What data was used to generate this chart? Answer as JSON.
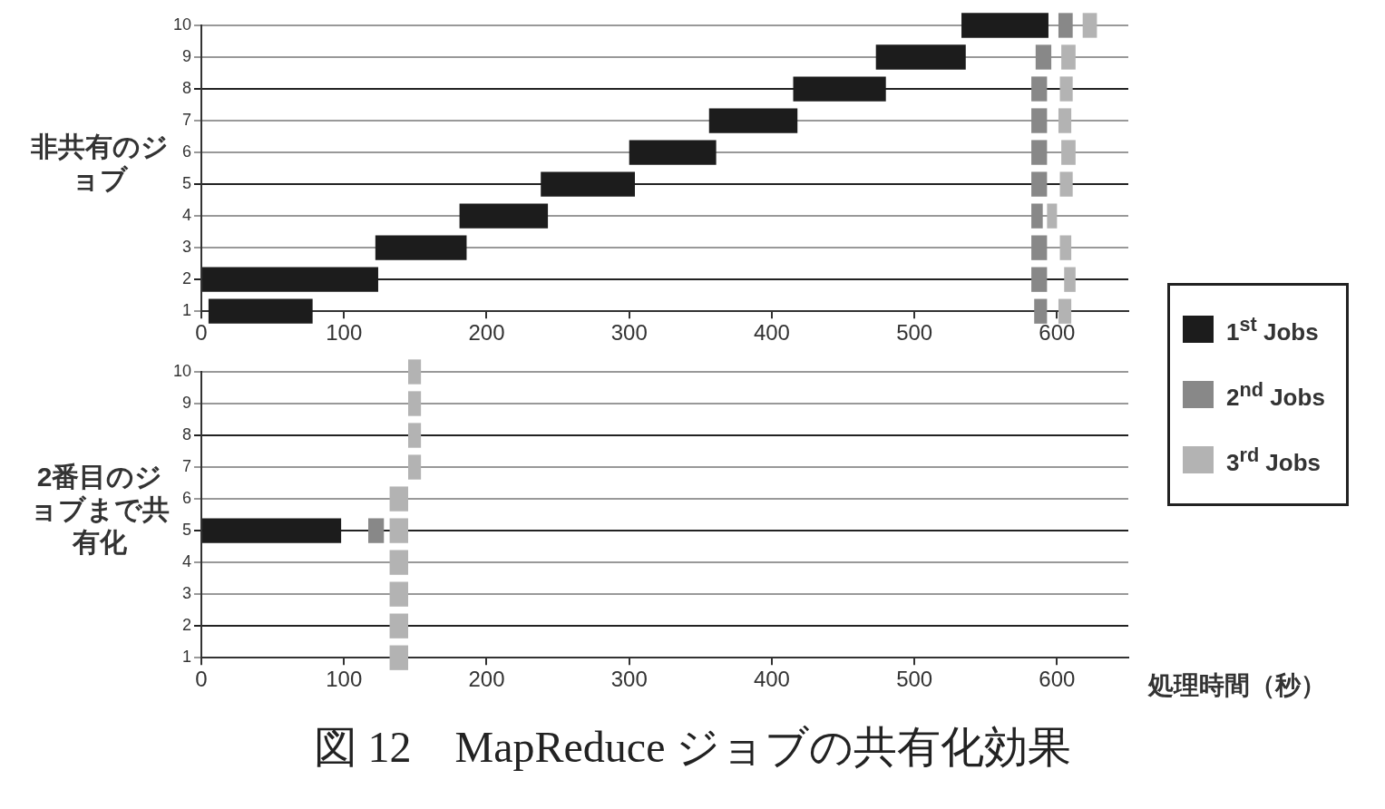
{
  "chart_data": [
    {
      "type": "bar",
      "orientation": "horizontal",
      "ylabel": "非共有のジョブ",
      "categories": [
        "10",
        "9",
        "8",
        "7",
        "6",
        "5",
        "4",
        "3",
        "2",
        "1"
      ],
      "xlim": [
        0,
        650
      ],
      "xticks": [
        0,
        100,
        200,
        300,
        400,
        500,
        600
      ],
      "grid": "y",
      "legend": "right",
      "series": [
        {
          "name": "1$^{st}$ Jobs",
          "color": "#1c1c1c",
          "base": [
            533,
            473,
            415,
            356,
            300,
            238,
            181,
            122,
            0,
            5
          ],
          "values": [
            61,
            63,
            65,
            62,
            61,
            66,
            62,
            64,
            124,
            73
          ]
        },
        {
          "name": "2$^{nd}$ Jobs",
          "color": "#888888",
          "base": [
            601,
            585,
            582,
            582,
            582,
            582,
            582,
            582,
            582,
            584
          ],
          "values": [
            10,
            11,
            11,
            11,
            11,
            11,
            8,
            11,
            11,
            9
          ]
        },
        {
          "name": "3$^{rd}$ Jobs",
          "color": "#b3b3b3",
          "base": [
            618,
            603,
            602,
            601,
            603,
            602,
            593,
            602,
            605,
            601
          ],
          "values": [
            10,
            10,
            9,
            9,
            10,
            9,
            7,
            8,
            8,
            9
          ]
        }
      ]
    },
    {
      "type": "bar",
      "orientation": "horizontal",
      "ylabel": "2番目のジョブまで共有化",
      "xlabel": "処理時間（秒）",
      "categories": [
        "10",
        "9",
        "8",
        "7",
        "6",
        "5",
        "4",
        "3",
        "2",
        "1"
      ],
      "xlim": [
        0,
        650
      ],
      "xticks": [
        0,
        100,
        200,
        300,
        400,
        500,
        600
      ],
      "grid": "y",
      "legend": false,
      "annotations": [
        "図 12　MapReduce ジョブの共有化効果"
      ],
      "series": [
        {
          "color": "#1c1c1c",
          "base": [
            null,
            null,
            null,
            null,
            null,
            0,
            null,
            null,
            null,
            null
          ],
          "values": [
            null,
            null,
            null,
            null,
            null,
            98,
            null,
            null,
            null,
            null
          ]
        },
        {
          "color": "#888888",
          "base": [
            null,
            null,
            null,
            null,
            null,
            117,
            null,
            null,
            null,
            null
          ],
          "values": [
            null,
            null,
            null,
            null,
            null,
            11,
            null,
            null,
            null,
            null
          ]
        },
        {
          "color": "#b3b3b3",
          "base": [
            145,
            145,
            145,
            145,
            132,
            132,
            132,
            132,
            132,
            132
          ],
          "values": [
            9,
            9,
            9,
            9,
            13,
            13,
            13,
            13,
            13,
            13
          ]
        }
      ]
    }
  ]
}
